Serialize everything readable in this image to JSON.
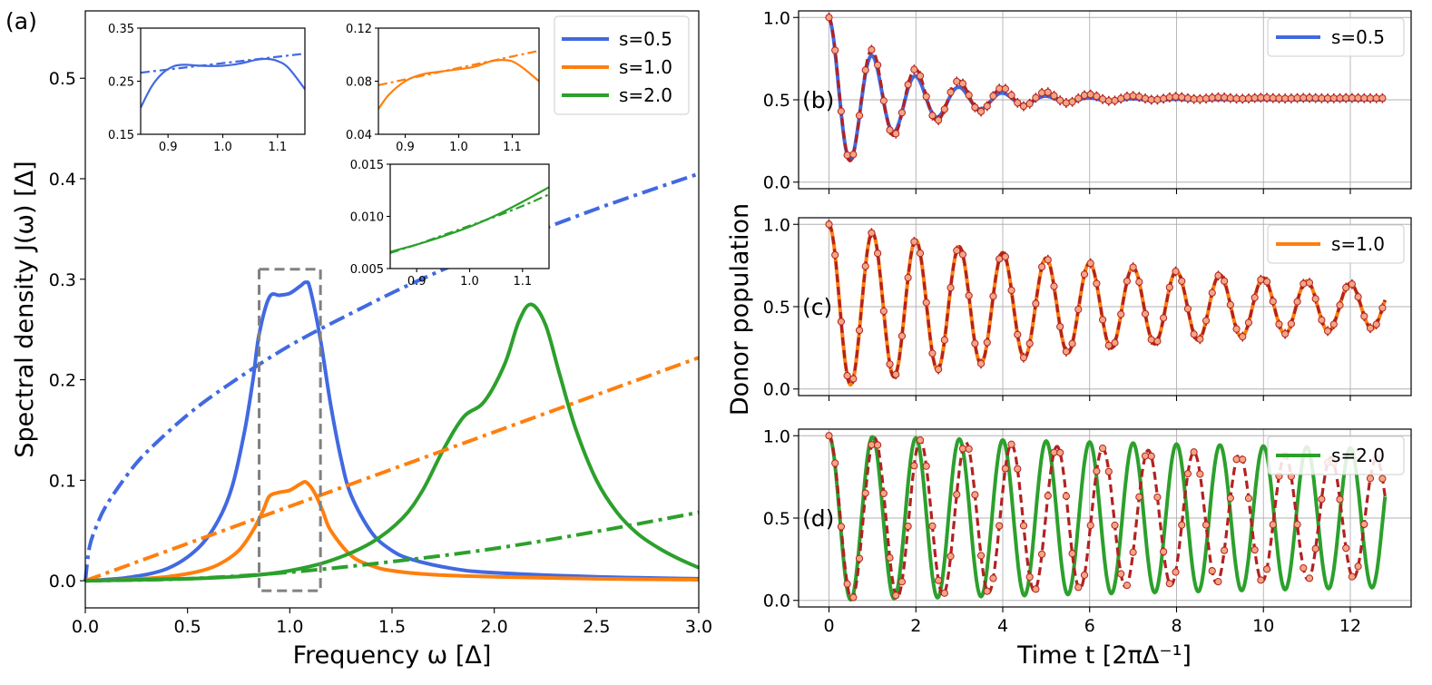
{
  "chart_data": [
    {
      "panel": "(a)",
      "type": "line",
      "xlabel": "Frequency ω [Δ]",
      "ylabel": "Spectral density J(ω) [Δ]",
      "xlim": [
        0.0,
        3.0
      ],
      "ylim": [
        -0.027,
        0.567
      ],
      "xticks": [
        "0.0",
        "0.5",
        "1.0",
        "1.5",
        "2.0",
        "2.5",
        "3.0"
      ],
      "yticks": [
        "0.0",
        "0.1",
        "0.2",
        "0.3",
        "0.4",
        "0.5"
      ],
      "grid": false,
      "legend_position": "top-right",
      "legend": [
        "s=0.5",
        "s=1.0",
        "s=2.0"
      ],
      "highlight_box": {
        "x": [
          0.85,
          1.15
        ],
        "y": [
          -0.01,
          0.31
        ]
      },
      "series": [
        {
          "name": "s=0.5",
          "style": "solid",
          "x": [
            0.0,
            0.2,
            0.4,
            0.55,
            0.65,
            0.72,
            0.78,
            0.82,
            0.85,
            0.9,
            0.95,
            1.0,
            1.05,
            1.08,
            1.1,
            1.15,
            1.2,
            1.25,
            1.3,
            1.4,
            1.5,
            1.6,
            1.8,
            2.0,
            2.5,
            3.0
          ],
          "values": [
            0.0,
            0.003,
            0.012,
            0.032,
            0.06,
            0.095,
            0.15,
            0.2,
            0.245,
            0.282,
            0.284,
            0.286,
            0.293,
            0.297,
            0.29,
            0.24,
            0.175,
            0.122,
            0.085,
            0.048,
            0.03,
            0.021,
            0.012,
            0.008,
            0.004,
            0.002
          ]
        },
        {
          "name": "s=1.0",
          "style": "solid",
          "x": [
            0.0,
            0.2,
            0.4,
            0.55,
            0.65,
            0.75,
            0.82,
            0.87,
            0.9,
            0.95,
            1.0,
            1.05,
            1.08,
            1.12,
            1.16,
            1.2,
            1.3,
            1.4,
            1.5,
            1.7,
            2.0,
            2.5,
            3.0
          ],
          "values": [
            0.0,
            0.001,
            0.004,
            0.009,
            0.016,
            0.03,
            0.05,
            0.07,
            0.084,
            0.088,
            0.09,
            0.096,
            0.098,
            0.088,
            0.07,
            0.05,
            0.025,
            0.015,
            0.01,
            0.006,
            0.004,
            0.002,
            0.001
          ]
        },
        {
          "name": "s=2.0",
          "style": "solid",
          "x": [
            0.0,
            0.5,
            0.8,
            1.0,
            1.2,
            1.4,
            1.55,
            1.65,
            1.75,
            1.85,
            1.95,
            2.05,
            2.12,
            2.18,
            2.25,
            2.32,
            2.4,
            2.5,
            2.6,
            2.7,
            2.8,
            2.9,
            3.0
          ],
          "values": [
            0.0,
            0.002,
            0.005,
            0.01,
            0.02,
            0.038,
            0.062,
            0.09,
            0.13,
            0.163,
            0.178,
            0.215,
            0.258,
            0.275,
            0.255,
            0.205,
            0.15,
            0.1,
            0.068,
            0.047,
            0.033,
            0.022,
            0.013
          ]
        },
        {
          "name": "s=0.5 fit",
          "style": "dashdot",
          "x": [
            0.0,
            0.02,
            0.05,
            0.1,
            0.2,
            0.3,
            0.5,
            0.7,
            1.0,
            1.3,
            1.6,
            2.0,
            2.5,
            3.0
          ],
          "values": [
            0.0,
            0.033,
            0.052,
            0.074,
            0.104,
            0.128,
            0.165,
            0.195,
            0.234,
            0.266,
            0.296,
            0.331,
            0.37,
            0.405
          ]
        },
        {
          "name": "s=1.0 fit",
          "style": "dashdot",
          "x": [
            0.0,
            3.0
          ],
          "values": [
            0.0,
            0.222
          ]
        },
        {
          "name": "s=2.0 fit",
          "style": "dashdot",
          "x": [
            0.0,
            0.5,
            1.0,
            1.5,
            2.0,
            2.5,
            3.0
          ],
          "values": [
            0.0,
            0.002,
            0.0085,
            0.019,
            0.032,
            0.049,
            0.068
          ]
        }
      ],
      "insets": [
        {
          "series": "s=0.5",
          "xlim": [
            0.85,
            1.15
          ],
          "ylim": [
            0.15,
            0.35
          ],
          "xticks": [
            "0.9",
            "1.0",
            "1.1"
          ],
          "yticks": [
            "0.15",
            "0.25",
            "0.35"
          ],
          "x": [
            0.85,
            0.87,
            0.89,
            0.91,
            0.93,
            0.96,
            1.0,
            1.03,
            1.06,
            1.08,
            1.1,
            1.12,
            1.15
          ],
          "values": [
            0.2,
            0.24,
            0.265,
            0.278,
            0.281,
            0.279,
            0.279,
            0.283,
            0.29,
            0.292,
            0.288,
            0.275,
            0.235
          ],
          "fit_x": [
            0.85,
            1.15
          ],
          "fit_values": [
            0.266,
            0.302
          ]
        },
        {
          "series": "s=1.0",
          "xlim": [
            0.85,
            1.15
          ],
          "ylim": [
            0.04,
            0.12
          ],
          "xticks": [
            "0.9",
            "1.0",
            "1.1"
          ],
          "yticks": [
            "0.04",
            "0.08",
            "0.12"
          ],
          "x": [
            0.85,
            0.87,
            0.9,
            0.93,
            0.96,
            1.0,
            1.03,
            1.06,
            1.08,
            1.1,
            1.12,
            1.15
          ],
          "values": [
            0.059,
            0.07,
            0.08,
            0.085,
            0.087,
            0.089,
            0.091,
            0.095,
            0.096,
            0.095,
            0.09,
            0.08
          ],
          "fit_x": [
            0.85,
            1.15
          ],
          "fit_values": [
            0.077,
            0.103
          ]
        },
        {
          "series": "s=2.0",
          "xlim": [
            0.85,
            1.15
          ],
          "ylim": [
            0.005,
            0.015
          ],
          "xticks": [
            "0.9",
            "1.0",
            "1.1"
          ],
          "yticks": [
            "0.005",
            "0.010",
            "0.015"
          ],
          "x": [
            0.85,
            0.9,
            0.95,
            1.0,
            1.05,
            1.1,
            1.15
          ],
          "values": [
            0.0066,
            0.0073,
            0.0081,
            0.009,
            0.0101,
            0.0114,
            0.0128
          ],
          "fit_x": [
            0.85,
            0.9,
            0.95,
            1.0,
            1.05,
            1.1,
            1.15
          ],
          "fit_values": [
            0.0065,
            0.0073,
            0.0082,
            0.0091,
            0.01,
            0.011,
            0.0121
          ]
        }
      ]
    },
    {
      "panel": "(b)",
      "type": "line",
      "legend": [
        "s=0.5"
      ],
      "xlim": [
        -0.7,
        13.4
      ],
      "ylim": [
        -0.04,
        1.04
      ],
      "yticks": [
        "0.0",
        "0.5",
        "1.0"
      ],
      "grid": true,
      "legend_position": "top-right",
      "model": {
        "period": 1.0,
        "decay_time": 1.6,
        "equilibrium": 0.5,
        "min_population": 0.04,
        "t_max": 12.8
      },
      "measured": {
        "model_decay_time": 1.95,
        "equilibrium": 0.51,
        "point_spacing": 0.14,
        "error_bar": 0.03
      }
    },
    {
      "panel": "(c)",
      "type": "line",
      "legend": [
        "s=1.0"
      ],
      "xlim": [
        -0.7,
        13.4
      ],
      "ylim": [
        -0.04,
        1.04
      ],
      "yticks": [
        "0.0",
        "0.5",
        "1.0"
      ],
      "grid": true,
      "legend_position": "top-right",
      "model": {
        "period": 1.0,
        "decay_time": 9.5,
        "equilibrium": 0.5,
        "min_population": 0.01,
        "t_max": 12.8
      },
      "measured": {
        "model_decay_time": 9.5,
        "equilibrium": 0.5,
        "point_spacing": 0.14,
        "error_bar": 0.03
      }
    },
    {
      "panel": "(d)",
      "type": "line",
      "legend": [
        "s=2.0"
      ],
      "xlim": [
        -0.7,
        13.4
      ],
      "ylim": [
        -0.04,
        1.04
      ],
      "xticks": [
        "0",
        "2",
        "4",
        "6",
        "8",
        "10",
        "12"
      ],
      "yticks": [
        "0.0",
        "0.5",
        "1.0"
      ],
      "xlabel": "Time t [2πΔ⁻¹]",
      "shared_ylabel": "Donor population",
      "grid": true,
      "legend_position": "top-right",
      "model": {
        "period": 1.0,
        "decay_time": 75,
        "equilibrium": 0.5,
        "min_population": 0.01,
        "t_max": 12.8
      },
      "measured": {
        "period": 1.05,
        "model_decay_time": 38,
        "equilibrium": 0.5,
        "point_spacing": 0.14,
        "error_bar": 0.02
      }
    }
  ],
  "colors": {
    "s05": "#4169e1",
    "s10": "#ff7f0e",
    "s20": "#2ca02c",
    "measured": "#b22222",
    "marker_fill": "#f4a582",
    "frame": "#000000",
    "grid": "#b0b0b0",
    "box": "#808080"
  }
}
